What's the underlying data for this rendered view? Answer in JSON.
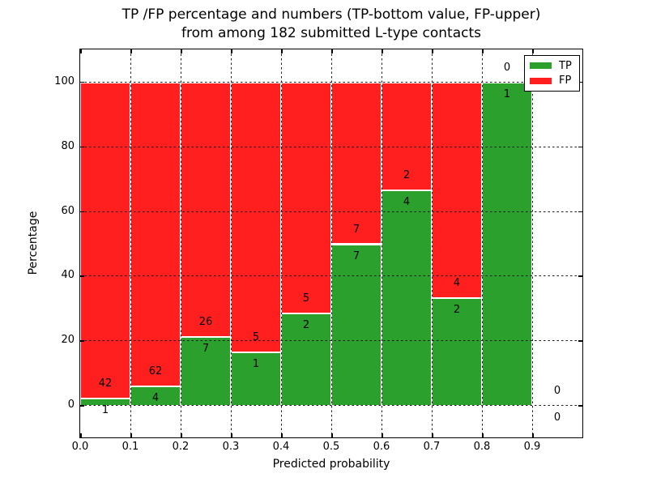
{
  "title": {
    "line1": "TP /FP percentage and numbers (TP-bottom value, FP-upper)",
    "line2": "from among 182 submitted L-type contacts"
  },
  "chart_data": {
    "type": "bar",
    "stacked": true,
    "title": "TP /FP percentage and numbers (TP-bottom value, FP-upper)\nfrom among 182 submitted L-type contacts",
    "xlabel": "Predicted probability",
    "ylabel": "Percentage",
    "xlim": [
      0.0,
      1.0
    ],
    "ylim": [
      -10,
      110
    ],
    "grid": true,
    "total_contacts": 182,
    "xtick_values": [
      0.0,
      0.1,
      0.2,
      0.3,
      0.4,
      0.5,
      0.6,
      0.7,
      0.8,
      0.9
    ],
    "xtick_labels": [
      "0.0",
      "0.1",
      "0.2",
      "0.3",
      "0.4",
      "0.5",
      "0.6",
      "0.7",
      "0.8",
      "0.9"
    ],
    "ytick_values": [
      0,
      20,
      40,
      60,
      80,
      100
    ],
    "ytick_labels": [
      "0",
      "20",
      "40",
      "60",
      "80",
      "100"
    ],
    "bins": [
      {
        "range": "0.0-0.1",
        "tp": 1,
        "fp": 42,
        "tp_pct": 2.3,
        "fp_pct": 97.7
      },
      {
        "range": "0.1-0.2",
        "tp": 4,
        "fp": 62,
        "tp_pct": 6.1,
        "fp_pct": 93.9
      },
      {
        "range": "0.2-0.3",
        "tp": 7,
        "fp": 26,
        "tp_pct": 21.2,
        "fp_pct": 78.8
      },
      {
        "range": "0.3-0.4",
        "tp": 1,
        "fp": 5,
        "tp_pct": 16.7,
        "fp_pct": 83.3
      },
      {
        "range": "0.4-0.5",
        "tp": 2,
        "fp": 5,
        "tp_pct": 28.6,
        "fp_pct": 71.4
      },
      {
        "range": "0.5-0.6",
        "tp": 7,
        "fp": 7,
        "tp_pct": 50.0,
        "fp_pct": 50.0
      },
      {
        "range": "0.6-0.7",
        "tp": 4,
        "fp": 2,
        "tp_pct": 66.7,
        "fp_pct": 33.3
      },
      {
        "range": "0.7-0.8",
        "tp": 2,
        "fp": 4,
        "tp_pct": 33.3,
        "fp_pct": 66.7
      },
      {
        "range": "0.8-0.9",
        "tp": 1,
        "fp": 0,
        "tp_pct": 100.0,
        "fp_pct": 0.0
      },
      {
        "range": "0.9-1.0",
        "tp": 0,
        "fp": 0,
        "tp_pct": 0.0,
        "fp_pct": 0.0
      }
    ],
    "legend": {
      "position": "upper right",
      "entries": [
        {
          "label": "TP",
          "color": "#2ca02c"
        },
        {
          "label": "FP",
          "color": "#ff1f1f"
        }
      ]
    },
    "colors": {
      "tp": "#2ca02c",
      "fp": "#ff1f1f",
      "grid": "#1a1a1a",
      "frame": "#000000"
    }
  }
}
